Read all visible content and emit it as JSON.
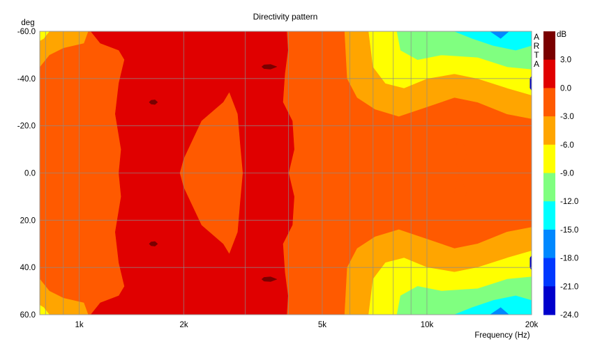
{
  "chart_data": {
    "type": "heatmap",
    "title": "Directivity pattern",
    "ylabel": "deg",
    "xlabel": "Frequency (Hz)",
    "x_scale": "log",
    "xlim": [
      770,
      20000
    ],
    "ylim": [
      -60,
      60
    ],
    "y_inverted": true,
    "x_ticks": [
      {
        "value": 1000,
        "label": "1k"
      },
      {
        "value": 2000,
        "label": "2k"
      },
      {
        "value": 5000,
        "label": "5k"
      },
      {
        "value": 10000,
        "label": "10k"
      },
      {
        "value": 20000,
        "label": "20k"
      }
    ],
    "x_minor_gridlines": [
      800,
      900,
      3000,
      4000,
      6000,
      7000,
      8000,
      9000
    ],
    "y_ticks": [
      {
        "value": -60,
        "label": "-60.0"
      },
      {
        "value": -40,
        "label": "-40.0"
      },
      {
        "value": -20,
        "label": "-20.0"
      },
      {
        "value": 0,
        "label": "0.0"
      },
      {
        "value": 20,
        "label": "20.0"
      },
      {
        "value": 40,
        "label": "40.0"
      },
      {
        "value": 60,
        "label": "60.0"
      }
    ],
    "grid": true,
    "colorbar": {
      "unit": "dB",
      "labels": [
        "3.0",
        "0.0",
        "-3.0",
        "-6.0",
        "-9.0",
        "-12.0",
        "-15.0",
        "-18.0",
        "-21.0",
        "-24.0"
      ],
      "bands": [
        {
          "from": 3,
          "to": 6,
          "color": "#7a0000"
        },
        {
          "from": 0,
          "to": 3,
          "color": "#e00000"
        },
        {
          "from": -3,
          "to": 0,
          "color": "#ff5a00"
        },
        {
          "from": -6,
          "to": -3,
          "color": "#ffa500"
        },
        {
          "from": -9,
          "to": -6,
          "color": "#ffff00"
        },
        {
          "from": -12,
          "to": -9,
          "color": "#80ff80"
        },
        {
          "from": -15,
          "to": -12,
          "color": "#00ffff"
        },
        {
          "from": -18,
          "to": -15,
          "color": "#0088ff"
        },
        {
          "from": -21,
          "to": -18,
          "color": "#0038ff"
        },
        {
          "from": -24,
          "to": -21,
          "color": "#0000cc"
        }
      ]
    },
    "regions": [
      {
        "level": -3,
        "color": "#ff5a00",
        "poly": [
          [
            770,
            -60
          ],
          [
            20000,
            -60
          ],
          [
            20000,
            60
          ],
          [
            770,
            60
          ]
        ]
      },
      {
        "level": -6,
        "color": "#ffa500",
        "poly": [
          [
            5800,
            -60
          ],
          [
            20000,
            -60
          ],
          [
            20000,
            -23
          ],
          [
            17000,
            -25
          ],
          [
            14000,
            -30
          ],
          [
            12000,
            -32
          ],
          [
            10000,
            -28
          ],
          [
            8300,
            -24
          ],
          [
            7100,
            -27
          ],
          [
            6300,
            -32
          ],
          [
            5900,
            -40
          ]
        ]
      },
      {
        "level": -6,
        "color": "#ffa500",
        "poly": [
          [
            5800,
            60
          ],
          [
            20000,
            60
          ],
          [
            20000,
            23
          ],
          [
            17000,
            25
          ],
          [
            14000,
            30
          ],
          [
            12000,
            32
          ],
          [
            10000,
            28
          ],
          [
            8300,
            24
          ],
          [
            7100,
            27
          ],
          [
            6300,
            32
          ],
          [
            5900,
            40
          ]
        ]
      },
      {
        "level": -9,
        "color": "#ffff00",
        "poly": [
          [
            6800,
            -60
          ],
          [
            20000,
            -60
          ],
          [
            20000,
            -33
          ],
          [
            17000,
            -36
          ],
          [
            14000,
            -40
          ],
          [
            12000,
            -42
          ],
          [
            10000,
            -40
          ],
          [
            8600,
            -36
          ],
          [
            7600,
            -38
          ],
          [
            7000,
            -45
          ]
        ]
      },
      {
        "level": -9,
        "color": "#ffff00",
        "poly": [
          [
            6800,
            60
          ],
          [
            20000,
            60
          ],
          [
            20000,
            33
          ],
          [
            17000,
            36
          ],
          [
            14000,
            40
          ],
          [
            12000,
            42
          ],
          [
            10000,
            40
          ],
          [
            8600,
            36
          ],
          [
            7600,
            38
          ],
          [
            7000,
            45
          ]
        ]
      },
      {
        "level": -12,
        "color": "#80ff80",
        "poly": [
          [
            8200,
            -60
          ],
          [
            20000,
            -60
          ],
          [
            20000,
            -44
          ],
          [
            17000,
            -45
          ],
          [
            14000,
            -49
          ],
          [
            11000,
            -50
          ],
          [
            9400,
            -48
          ],
          [
            8400,
            -52
          ]
        ]
      },
      {
        "level": -12,
        "color": "#80ff80",
        "poly": [
          [
            8200,
            60
          ],
          [
            20000,
            60
          ],
          [
            20000,
            44
          ],
          [
            17000,
            45
          ],
          [
            14000,
            49
          ],
          [
            11000,
            50
          ],
          [
            9400,
            48
          ],
          [
            8400,
            52
          ]
        ]
      },
      {
        "level": -15,
        "color": "#00ffff",
        "poly": [
          [
            12000,
            -60
          ],
          [
            20000,
            -60
          ],
          [
            20000,
            -54
          ],
          [
            18000,
            -52
          ],
          [
            15500,
            -54
          ],
          [
            13500,
            -57
          ]
        ]
      },
      {
        "level": -15,
        "color": "#00ffff",
        "poly": [
          [
            12000,
            60
          ],
          [
            20000,
            60
          ],
          [
            20000,
            54
          ],
          [
            18000,
            52
          ],
          [
            15500,
            54
          ],
          [
            13500,
            57
          ]
        ]
      },
      {
        "level": -18,
        "color": "#0088ff",
        "poly": [
          [
            15200,
            -60
          ],
          [
            17200,
            -60
          ],
          [
            16300,
            -57
          ]
        ]
      },
      {
        "level": -18,
        "color": "#0088ff",
        "poly": [
          [
            15200,
            60
          ],
          [
            17200,
            60
          ],
          [
            16300,
            57
          ]
        ]
      },
      {
        "level": -6,
        "color": "#ffa500",
        "poly": [
          [
            770,
            -60
          ],
          [
            1060,
            -60
          ],
          [
            1030,
            -55
          ],
          [
            900,
            -53
          ],
          [
            820,
            -50
          ],
          [
            770,
            -45
          ]
        ]
      },
      {
        "level": -6,
        "color": "#ffa500",
        "poly": [
          [
            770,
            60
          ],
          [
            1060,
            60
          ],
          [
            1030,
            55
          ],
          [
            900,
            53
          ],
          [
            820,
            50
          ],
          [
            770,
            45
          ]
        ]
      },
      {
        "level": -9,
        "color": "#ffff00",
        "poly": [
          [
            770,
            -60
          ],
          [
            820,
            -60
          ],
          [
            790,
            -57
          ],
          [
            770,
            -56
          ]
        ]
      },
      {
        "level": -9,
        "color": "#ffff00",
        "poly": [
          [
            770,
            60
          ],
          [
            820,
            60
          ],
          [
            790,
            57
          ],
          [
            770,
            56
          ]
        ]
      },
      {
        "level": 0,
        "color": "#e00000",
        "poly": [
          [
            1080,
            -60
          ],
          [
            3950,
            -60
          ],
          [
            3980,
            -52
          ],
          [
            3900,
            -42
          ],
          [
            3850,
            -30
          ],
          [
            4100,
            -22
          ],
          [
            4150,
            -10
          ],
          [
            4000,
            0
          ],
          [
            4150,
            10
          ],
          [
            4100,
            22
          ],
          [
            3850,
            30
          ],
          [
            3900,
            42
          ],
          [
            3980,
            52
          ],
          [
            3950,
            60
          ],
          [
            1080,
            60
          ],
          [
            1150,
            55
          ],
          [
            1300,
            52
          ],
          [
            1350,
            48
          ],
          [
            1300,
            38
          ],
          [
            1270,
            25
          ],
          [
            1320,
            10
          ],
          [
            1300,
            0
          ],
          [
            1320,
            -10
          ],
          [
            1270,
            -25
          ],
          [
            1300,
            -38
          ],
          [
            1350,
            -48
          ],
          [
            1300,
            -52
          ],
          [
            1150,
            -55
          ]
        ]
      },
      {
        "level": -3,
        "color": "#ff5a00",
        "poly": [
          [
            2000,
            -6
          ],
          [
            2250,
            -22
          ],
          [
            2600,
            -30
          ],
          [
            2700,
            -34
          ],
          [
            2850,
            -25
          ],
          [
            2900,
            -12
          ],
          [
            2950,
            0
          ],
          [
            2900,
            12
          ],
          [
            2850,
            25
          ],
          [
            2700,
            34
          ],
          [
            2600,
            30
          ],
          [
            2250,
            22
          ],
          [
            2000,
            6
          ],
          [
            1950,
            0
          ]
        ]
      },
      {
        "level": -3,
        "color": "#ff5a00",
        "poly": [
          [
            12200,
            -13
          ],
          [
            12800,
            -12
          ],
          [
            13000,
            -8
          ],
          [
            12600,
            -3
          ],
          [
            12400,
            0
          ],
          [
            12600,
            3
          ],
          [
            13000,
            8
          ],
          [
            12800,
            12
          ],
          [
            12200,
            13
          ],
          [
            12000,
            8
          ],
          [
            12200,
            3
          ],
          [
            12400,
            0
          ],
          [
            12200,
            -3
          ],
          [
            12000,
            -8
          ]
        ]
      },
      {
        "level": 3,
        "color": "#7a0000",
        "poly": [
          [
            1610,
            -30.8
          ],
          [
            1650,
            -31
          ],
          [
            1680,
            -30
          ],
          [
            1650,
            -29
          ],
          [
            1610,
            -29.2
          ],
          [
            1590,
            -30
          ]
        ]
      },
      {
        "level": 3,
        "color": "#7a0000",
        "poly": [
          [
            1610,
            29.2
          ],
          [
            1650,
            29
          ],
          [
            1680,
            30
          ],
          [
            1650,
            31
          ],
          [
            1610,
            30.8
          ],
          [
            1590,
            30
          ]
        ]
      },
      {
        "level": 3,
        "color": "#7a0000",
        "poly": [
          [
            3400,
            -45.8
          ],
          [
            3550,
            -46
          ],
          [
            3700,
            -45
          ],
          [
            3550,
            -44
          ],
          [
            3400,
            -44.2
          ],
          [
            3350,
            -45
          ]
        ]
      },
      {
        "level": 3,
        "color": "#7a0000",
        "poly": [
          [
            3400,
            44.2
          ],
          [
            3550,
            44
          ],
          [
            3700,
            45
          ],
          [
            3550,
            46
          ],
          [
            3400,
            45.8
          ],
          [
            3350,
            45
          ]
        ]
      },
      {
        "level": -24,
        "color": "#0000cc",
        "poly": [
          [
            20000,
            -41
          ],
          [
            19800,
            -40
          ],
          [
            19800,
            -36
          ],
          [
            20000,
            -35
          ]
        ]
      },
      {
        "level": -24,
        "color": "#0000cc",
        "poly": [
          [
            20000,
            35
          ],
          [
            19800,
            36
          ],
          [
            19800,
            40
          ],
          [
            20000,
            41
          ]
        ]
      }
    ],
    "watermark": [
      "A",
      "R",
      "T",
      "A"
    ]
  }
}
